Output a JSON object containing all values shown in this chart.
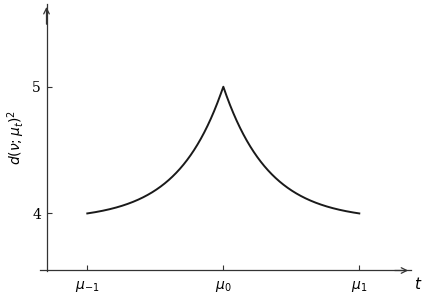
{
  "x_min": -1.0,
  "x_max": 1.0,
  "x_peak": 0.0,
  "y_min": 4.0,
  "y_peak": 5.0,
  "y_axis_ticks": [
    4,
    5
  ],
  "x_ticks": [
    -1.0,
    0.0,
    1.0
  ],
  "x_tick_labels": [
    "$\\mu_{-1}$",
    "$\\mu_0$",
    "$\\mu_1$"
  ],
  "xlabel": "$t$",
  "ylabel": "$d(\\nu; \\mu_t)^2$",
  "line_color": "#1a1a1a",
  "line_width": 1.4,
  "background_color": "#ffffff",
  "ylim_bottom": 3.55,
  "ylim_top": 5.65,
  "xlim_left": -1.35,
  "xlim_right": 1.38,
  "exp_k": 3.0
}
